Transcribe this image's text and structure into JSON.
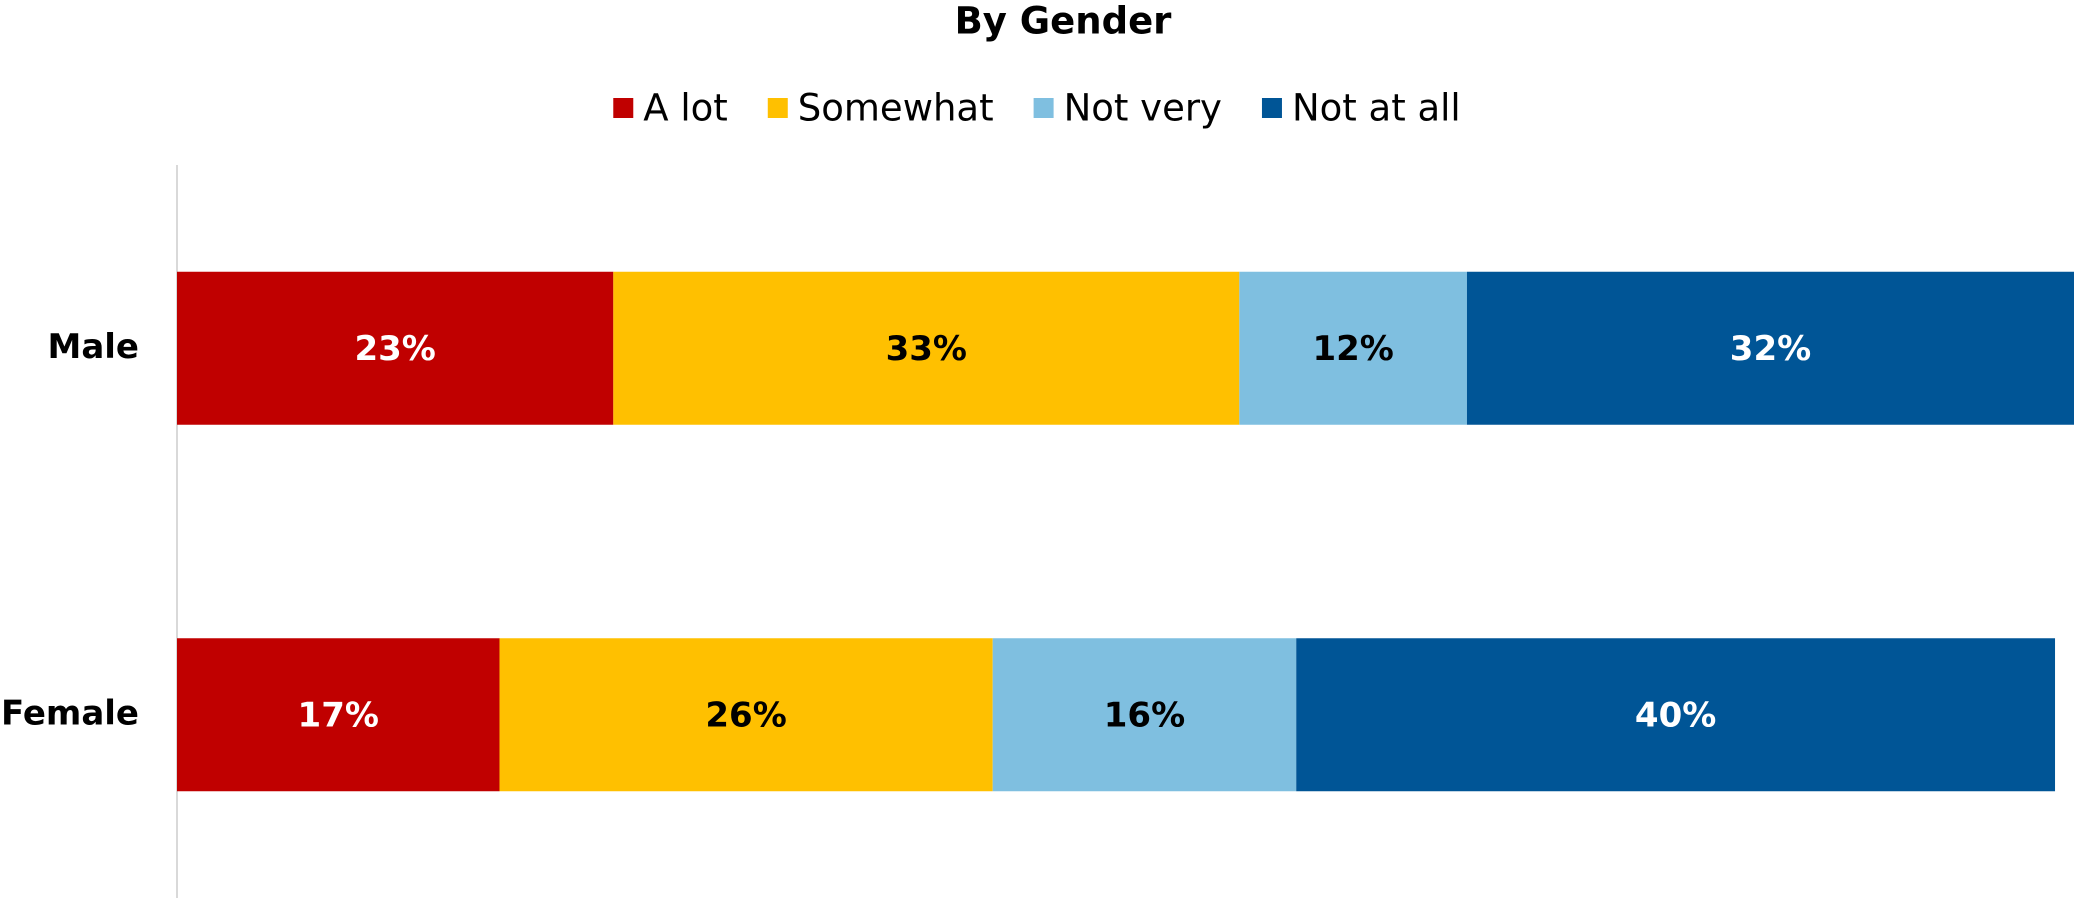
{
  "chart_data": {
    "type": "stacked_bar_horizontal",
    "title": "By Gender",
    "categories": [
      "Male",
      "Female"
    ],
    "series": [
      {
        "name": "A lot",
        "color": "#c00000",
        "values": [
          23,
          17
        ],
        "value_labels": [
          "23%",
          "17%"
        ]
      },
      {
        "name": "Somewhat",
        "color": "#ffc000",
        "values": [
          33,
          26
        ],
        "value_labels": [
          "33%",
          "26%"
        ]
      },
      {
        "name": "Not very",
        "color": "#7fbfe0",
        "values": [
          12,
          16
        ],
        "value_labels": [
          "12%",
          "16%"
        ]
      },
      {
        "name": "Not at all",
        "color": "#005596",
        "values": [
          32,
          40
        ],
        "value_labels": [
          "32%",
          "40%"
        ]
      }
    ],
    "xlim": [
      0,
      100
    ],
    "legend": "top"
  }
}
